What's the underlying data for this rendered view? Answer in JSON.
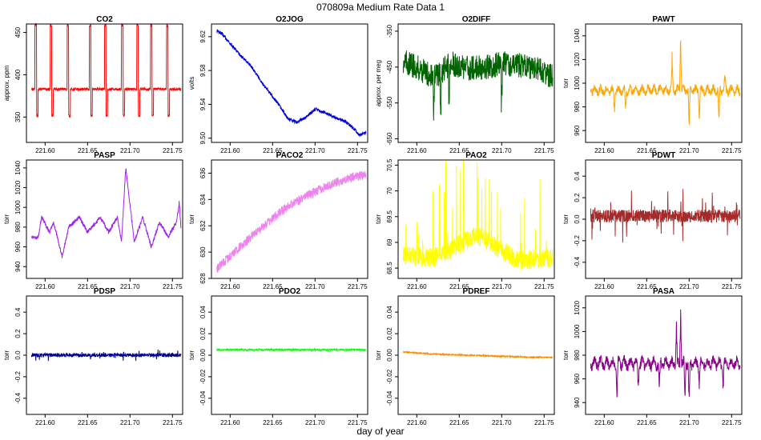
{
  "figure": {
    "title": "070809a   Medium Rate Data 1",
    "xlabel": "day of year"
  },
  "chart_data": [
    {
      "type": "line",
      "title": "CO2",
      "ylabel": "approx. ppm",
      "color": "#ff0000",
      "xlim": [
        221.578,
        221.762
      ],
      "ylim": [
        320,
        460
      ],
      "yticks": [
        350,
        400,
        450
      ],
      "xticks": [
        "221.60",
        "221.65",
        "221.70",
        "221.75"
      ],
      "pattern": "pulses",
      "baseline": 383,
      "noise": 1.5,
      "pulse_high": 460,
      "pulse_low": 350,
      "pulse_starts": [
        221.588,
        221.606,
        221.626,
        221.652,
        221.67,
        221.69,
        221.708,
        221.724,
        221.743
      ]
    },
    {
      "type": "line",
      "title": "O2JOG",
      "ylabel": "volts",
      "color": "#0000dd",
      "xlim": [
        221.578,
        221.762
      ],
      "ylim": [
        9.495,
        9.635
      ],
      "yticks": [
        9.5,
        9.54,
        9.58,
        9.62
      ],
      "ytick_labels": [
        "9.50",
        "9.54",
        "9.58",
        "9.62"
      ],
      "xticks": [
        "221.60",
        "221.65",
        "221.70",
        "221.75"
      ],
      "pattern": "trend",
      "noise": 0.002,
      "x": [
        221.584,
        221.59,
        221.6,
        221.612,
        221.625,
        221.64,
        221.655,
        221.668,
        221.678,
        221.688,
        221.7,
        221.712,
        221.725,
        221.735,
        221.745,
        221.752,
        221.76
      ],
      "y": [
        9.627,
        9.624,
        9.612,
        9.598,
        9.585,
        9.562,
        9.543,
        9.523,
        9.519,
        9.524,
        9.534,
        9.53,
        9.524,
        9.52,
        9.512,
        9.504,
        9.506
      ]
    },
    {
      "type": "line",
      "title": "O2DIFF",
      "ylabel": "approx. per meg",
      "color": "#006400",
      "xlim": [
        221.578,
        221.762
      ],
      "ylim": [
        -660,
        -330
      ],
      "yticks": [
        -650,
        -550,
        -450,
        -350
      ],
      "xticks": [
        "221.60",
        "221.65",
        "221.70",
        "221.75"
      ],
      "pattern": "noisy",
      "noise": 35,
      "spike_down": [
        221.62,
        221.628,
        221.638,
        221.7
      ],
      "spike_depth": 110,
      "x": [
        221.584,
        221.6,
        221.62,
        221.64,
        221.66,
        221.68,
        221.7,
        221.72,
        221.74,
        221.76
      ],
      "y": [
        -435,
        -450,
        -480,
        -440,
        -455,
        -450,
        -440,
        -445,
        -455,
        -475
      ]
    },
    {
      "type": "line",
      "title": "PAWT",
      "ylabel": "torr",
      "color": "#ffa500",
      "xlim": [
        221.578,
        221.762
      ],
      "ylim": [
        950,
        1050
      ],
      "yticks": [
        960,
        980,
        1000,
        1020,
        1040
      ],
      "xticks": [
        "221.60",
        "221.65",
        "221.70",
        "221.75"
      ],
      "pattern": "spiky",
      "baseline": 994,
      "noise": 3,
      "spikes": [
        [
          221.612,
          -22
        ],
        [
          221.625,
          -18
        ],
        [
          221.68,
          30
        ],
        [
          221.69,
          55
        ],
        [
          221.7,
          -35
        ],
        [
          221.712,
          -30
        ],
        [
          221.735,
          -35
        ],
        [
          221.742,
          15
        ]
      ]
    },
    {
      "type": "line",
      "title": "PASP",
      "ylabel": "torr",
      "color": "#a020f0",
      "xlim": [
        221.578,
        221.762
      ],
      "ylim": [
        928,
        1048
      ],
      "yticks": [
        940,
        960,
        980,
        1000,
        1020,
        1040
      ],
      "xticks": [
        "221.60",
        "221.65",
        "221.70",
        "221.75"
      ],
      "pattern": "steps",
      "noise": 2,
      "x": [
        221.584,
        221.592,
        221.596,
        221.605,
        221.61,
        221.62,
        221.628,
        221.64,
        221.65,
        221.665,
        221.675,
        221.685,
        221.69,
        221.695,
        221.705,
        221.715,
        221.725,
        221.735,
        221.745,
        221.755,
        221.758,
        221.76
      ],
      "y": [
        970,
        970,
        990,
        975,
        985,
        950,
        980,
        990,
        975,
        990,
        975,
        990,
        965,
        1040,
        965,
        990,
        960,
        985,
        970,
        985,
        1005,
        980
      ]
    },
    {
      "type": "line",
      "title": "PACO2",
      "ylabel": "torr",
      "color": "#ee82ee",
      "xlim": [
        221.578,
        221.762
      ],
      "ylim": [
        628,
        637
      ],
      "yticks": [
        628,
        630,
        632,
        634,
        636
      ],
      "xticks": [
        "221.60",
        "221.65",
        "221.70",
        "221.75"
      ],
      "pattern": "trend",
      "noise": 0.35,
      "x": [
        221.584,
        221.6,
        221.62,
        221.64,
        221.66,
        221.68,
        221.7,
        221.72,
        221.74,
        221.76
      ],
      "y": [
        628.7,
        629.7,
        630.9,
        632.0,
        633.1,
        633.9,
        634.6,
        635.2,
        635.6,
        635.9
      ]
    },
    {
      "type": "line",
      "title": "PAO2",
      "ylabel": "torr",
      "color": "#ffff00",
      "xlim": [
        221.578,
        221.762
      ],
      "ylim": [
        68.3,
        70.6
      ],
      "yticks": [
        68.5,
        69.0,
        69.5,
        70.0,
        70.5
      ],
      "xticks": [
        "221.60",
        "221.65",
        "221.70",
        "221.75"
      ],
      "pattern": "band",
      "noise": 0.12,
      "spike_up": 1.8,
      "x": [
        221.584,
        221.62,
        221.65,
        221.67,
        221.69,
        221.72,
        221.76
      ],
      "y": [
        68.75,
        68.7,
        68.95,
        69.15,
        68.95,
        68.65,
        68.7
      ]
    },
    {
      "type": "line",
      "title": "PDWT",
      "ylabel": "torr",
      "color": "#a52a2a",
      "xlim": [
        221.578,
        221.762
      ],
      "ylim": [
        -0.55,
        0.55
      ],
      "yticks": [
        -0.4,
        -0.2,
        0.0,
        0.2,
        0.4
      ],
      "ytick_labels": [
        "-0.4",
        "-0.2",
        "0.0",
        "0.2",
        "0.4"
      ],
      "xticks": [
        "221.60",
        "221.65",
        "221.70",
        "221.75"
      ],
      "pattern": "zero_noise",
      "baseline": 0.03,
      "noise": 0.06,
      "spike_up": 0.25
    },
    {
      "type": "line",
      "title": "PDSP",
      "ylabel": "torr",
      "color": "#00008b",
      "xlim": [
        221.578,
        221.762
      ],
      "ylim": [
        -0.55,
        0.55
      ],
      "yticks": [
        -0.4,
        -0.2,
        0.0,
        0.2,
        0.4
      ],
      "ytick_labels": [
        "-0.4",
        "-0.2",
        "0.0",
        "0.2",
        "0.4"
      ],
      "xticks": [
        "221.60",
        "221.65",
        "221.70",
        "221.75"
      ],
      "pattern": "zero_noise",
      "baseline": 0.0,
      "noise": 0.018,
      "spike_up": 0.05
    },
    {
      "type": "line",
      "title": "PDO2",
      "ylabel": "torr",
      "color": "#00ff00",
      "xlim": [
        221.578,
        221.762
      ],
      "ylim": [
        -0.055,
        0.055
      ],
      "yticks": [
        -0.04,
        -0.02,
        0.0,
        0.02,
        0.04
      ],
      "ytick_labels": [
        "-0.04",
        "-0.02",
        "0.00",
        "0.02",
        "0.04"
      ],
      "xticks": [
        "221.60",
        "221.65",
        "221.70",
        "221.75"
      ],
      "pattern": "zero_noise",
      "baseline": 0.005,
      "noise": 0.0008,
      "spike_up": 0.001
    },
    {
      "type": "line",
      "title": "PDREF",
      "ylabel": "torr",
      "color": "#ff8c00",
      "xlim": [
        221.578,
        221.762
      ],
      "ylim": [
        -0.055,
        0.055
      ],
      "yticks": [
        -0.04,
        -0.02,
        0.0,
        0.02,
        0.04
      ],
      "ytick_labels": [
        "-0.04",
        "-0.02",
        "0.00",
        "0.02",
        "0.04"
      ],
      "xticks": [
        "221.60",
        "221.65",
        "221.70",
        "221.75"
      ],
      "pattern": "trend",
      "noise": 0.0006,
      "x": [
        221.584,
        221.62,
        221.66,
        221.7,
        221.74,
        221.758
      ],
      "y": [
        0.003,
        0.001,
        0.0,
        -0.001,
        -0.002,
        -0.002
      ]
    },
    {
      "type": "line",
      "title": "PASA",
      "ylabel": "torr",
      "color": "#8b008b",
      "xlim": [
        221.578,
        221.762
      ],
      "ylim": [
        930,
        1030
      ],
      "yticks": [
        940,
        960,
        980,
        1000,
        1020
      ],
      "xticks": [
        "221.60",
        "221.65",
        "221.70",
        "221.75"
      ],
      "pattern": "spiky",
      "baseline": 973,
      "noise": 4,
      "spikes": [
        [
          221.615,
          -30
        ],
        [
          221.64,
          -22
        ],
        [
          221.665,
          -25
        ],
        [
          221.685,
          40
        ],
        [
          221.69,
          50
        ],
        [
          221.695,
          -35
        ],
        [
          221.7,
          -40
        ],
        [
          221.712,
          -20
        ],
        [
          221.74,
          -22
        ]
      ]
    }
  ]
}
